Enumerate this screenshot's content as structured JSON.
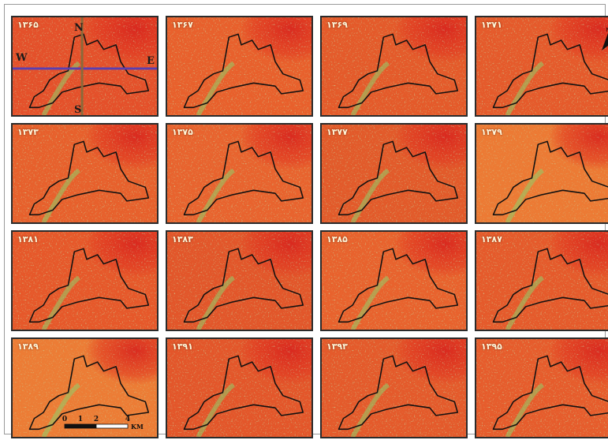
{
  "panels": [
    {
      "year": "۱۳۶۵",
      "tone": "#e4502a"
    },
    {
      "year": "۱۳۶۷",
      "tone": "#e8602c"
    },
    {
      "year": "۱۳۶۹",
      "tone": "#e45a2a"
    },
    {
      "year": "۱۳۷۱",
      "tone": "#e55a2b"
    },
    {
      "year": "۱۳۷۳",
      "tone": "#e7602c"
    },
    {
      "year": "۱۳۷۵",
      "tone": "#e8632e"
    },
    {
      "year": "۱۳۷۷",
      "tone": "#e25a2a"
    },
    {
      "year": "۱۳۷۹",
      "tone": "#ec7a34"
    },
    {
      "year": "۱۳۸۱",
      "tone": "#e6582a"
    },
    {
      "year": "۱۳۸۳",
      "tone": "#e2562a"
    },
    {
      "year": "۱۳۸۵",
      "tone": "#e8622d"
    },
    {
      "year": "۱۳۸۷",
      "tone": "#e55a2b"
    },
    {
      "year": "۱۳۸۹",
      "tone": "#ec7c35"
    },
    {
      "year": "۱۳۹۱",
      "tone": "#e3562a"
    },
    {
      "year": "۱۳۹۳",
      "tone": "#e45a2b"
    },
    {
      "year": "۱۳۹۵",
      "tone": "#e65c2c"
    }
  ],
  "directions": {
    "north": "N",
    "south": "S",
    "west": "W",
    "east": "E"
  },
  "north_arrow": {
    "label": "N"
  },
  "scale_bar": {
    "ticks": [
      "0",
      "1",
      "2",
      "4"
    ],
    "unit": "KM"
  },
  "colors": {
    "hot": "#e23a22",
    "warm": "#f08a3a",
    "vegetation": "#8fd06a",
    "boundary": "#111111",
    "profile_ew": "#5a3fb0",
    "profile_ns": "#8a6a3a"
  }
}
